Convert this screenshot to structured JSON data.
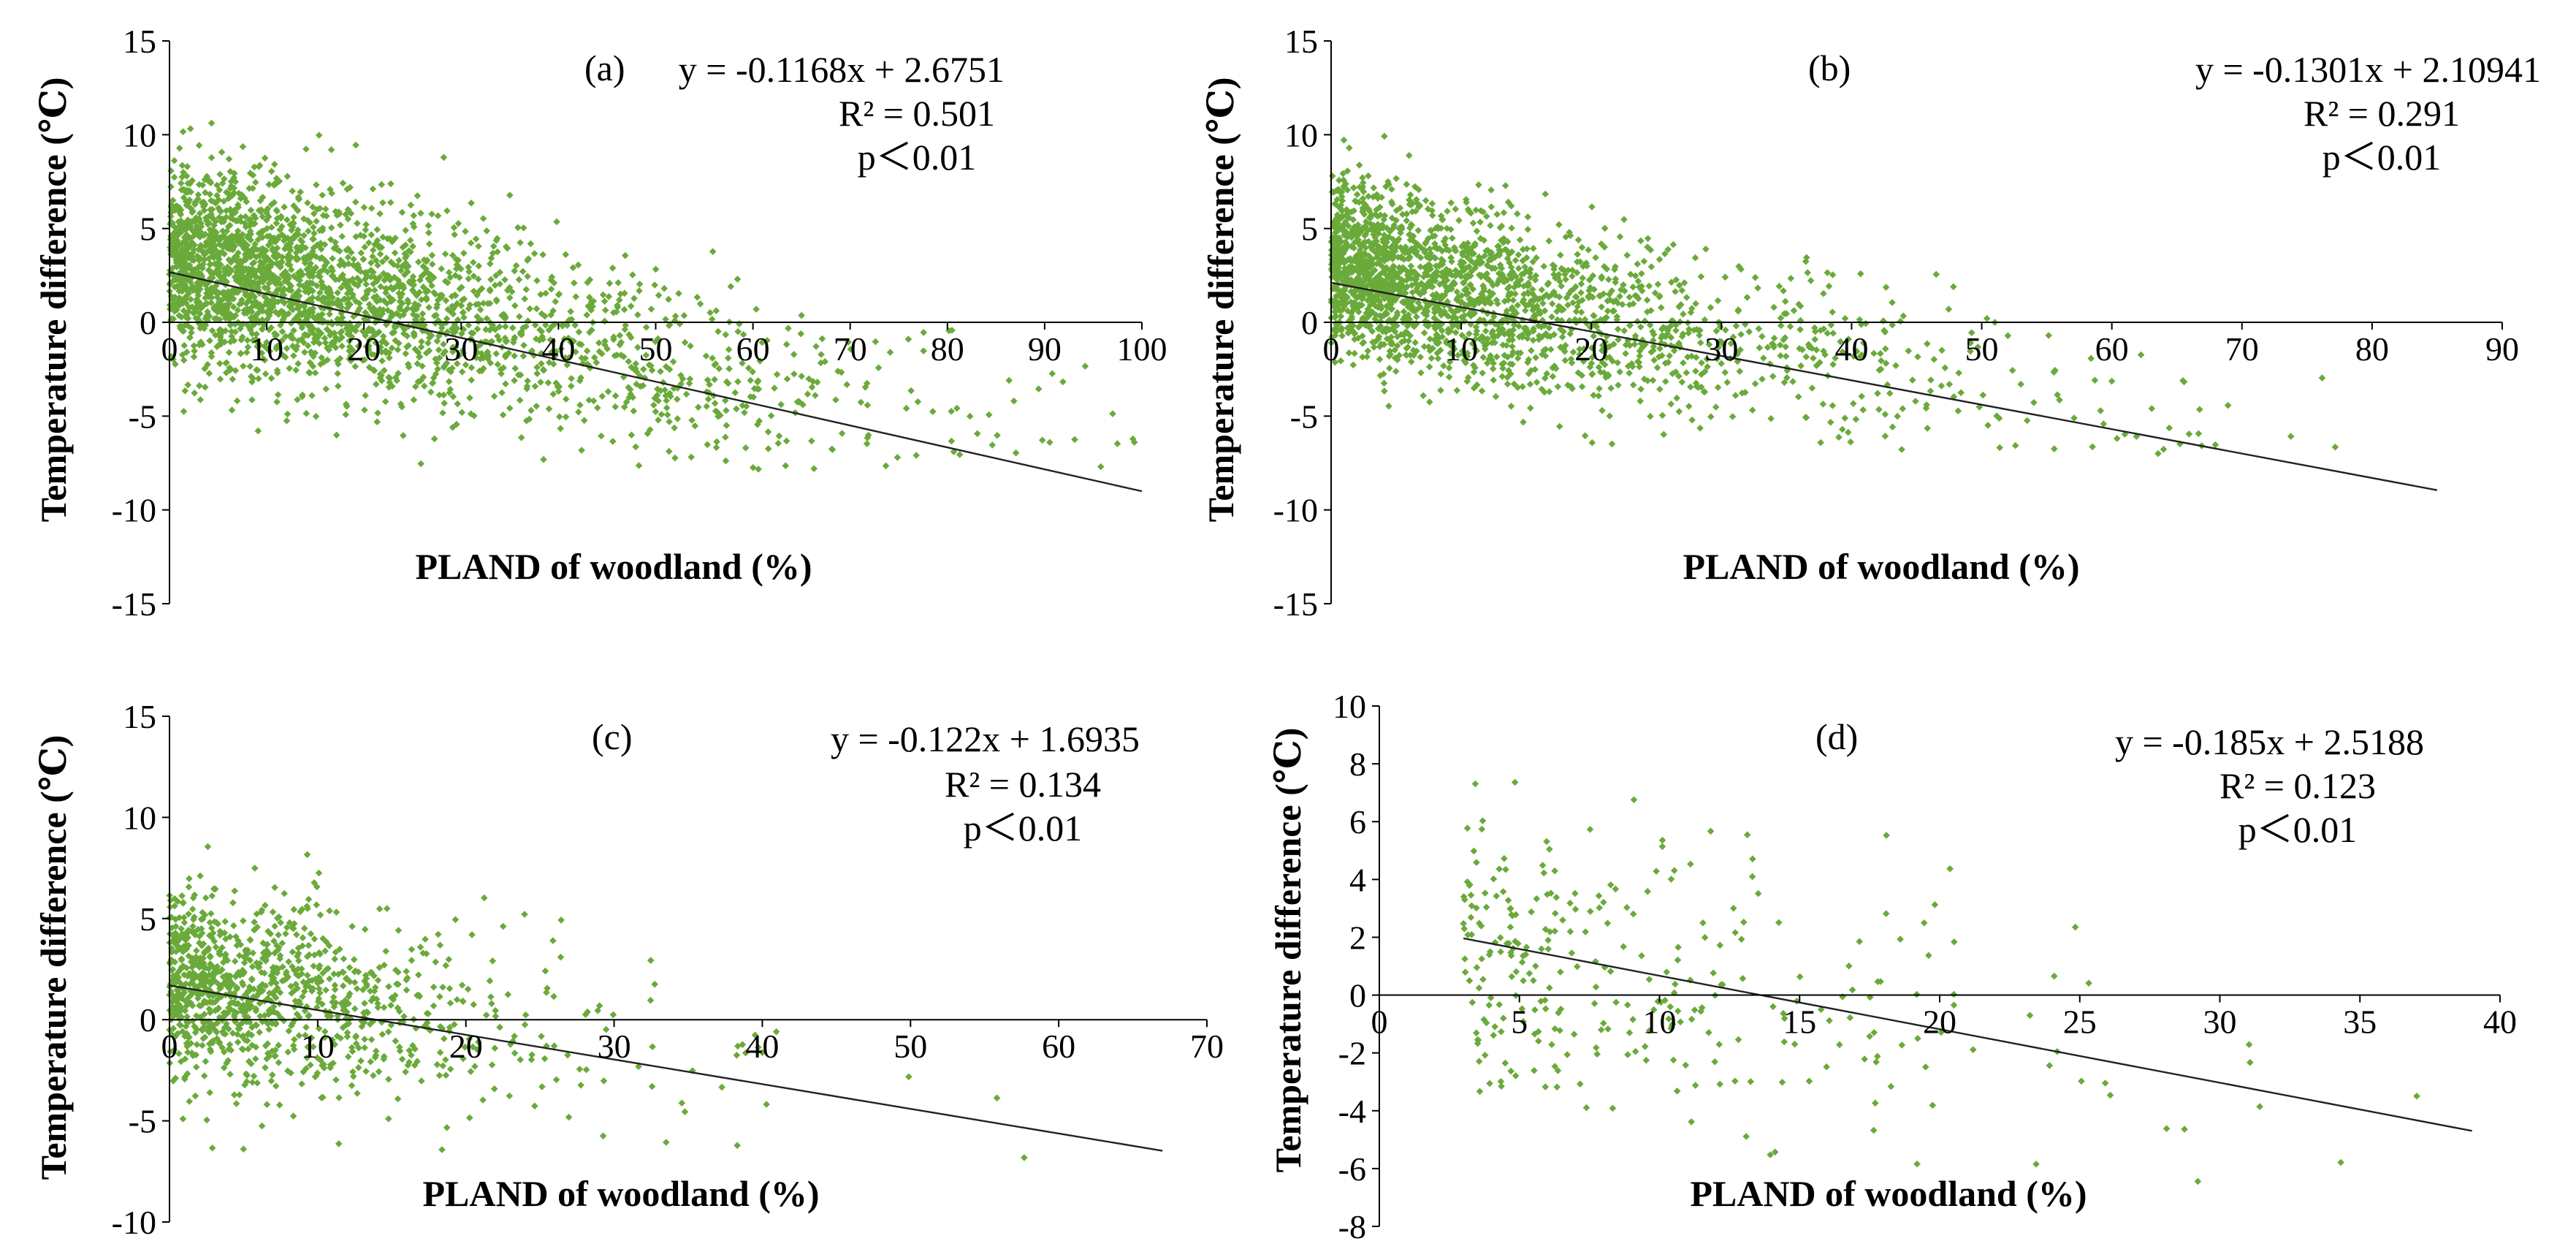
{
  "figure": {
    "colors": {
      "point": "#6aaa3a",
      "trend": "#222222",
      "axis": "#000000",
      "background": "#ffffff"
    }
  },
  "chart_data": [
    {
      "type": "scatter",
      "panel": "(a)",
      "title": "",
      "xlabel": "PLAND of woodland (%)",
      "ylabel": "Temperature difference (℃)",
      "xlim": [
        0,
        100
      ],
      "ylim": [
        -15,
        15
      ],
      "x_ticks": [
        0,
        10,
        20,
        30,
        40,
        50,
        60,
        70,
        80,
        90,
        100
      ],
      "y_ticks": [
        -15,
        -10,
        -5,
        0,
        5,
        10,
        15
      ],
      "x_tick_labels": [
        "0",
        "10",
        "20",
        "30",
        "40",
        "50",
        "60",
        "70",
        "80",
        "90",
        "100"
      ],
      "y_tick_labels": [
        "-15",
        "-10",
        "-5",
        "0",
        "5",
        "10",
        "15"
      ],
      "trend": {
        "slope": -0.1168,
        "intercept": 2.6751,
        "x_range": [
          0,
          100
        ]
      },
      "equation": "y = -0.1168x + 2.6751",
      "r2": "R² = 0.501",
      "p": "p＜0.01",
      "cloud": {
        "n": 2600,
        "x_max": 100,
        "density_decay": 22,
        "sd": 2.6,
        "fit_intercept": 3.6,
        "fit_slope": -0.116,
        "y_range": [
          -8,
          12
        ]
      }
    },
    {
      "type": "scatter",
      "panel": "(b)",
      "title": "",
      "xlabel": "PLAND of woodland (%)",
      "ylabel": "Temperature difference (℃)",
      "xlim": [
        0,
        90
      ],
      "ylim": [
        -15,
        15
      ],
      "x_ticks": [
        0,
        10,
        20,
        30,
        40,
        50,
        60,
        70,
        80,
        90
      ],
      "y_ticks": [
        -15,
        -10,
        -5,
        0,
        5,
        10,
        15
      ],
      "x_tick_labels": [
        "0",
        "10",
        "20",
        "30",
        "40",
        "50",
        "60",
        "70",
        "80",
        "90"
      ],
      "y_tick_labels": [
        "-15",
        "-10",
        "-5",
        "0",
        "5",
        "10",
        "15"
      ],
      "trend": {
        "slope": -0.1301,
        "intercept": 2.10941,
        "x_range": [
          0,
          85
        ]
      },
      "equation": "y = -0.1301x + 2.10941",
      "r2": "R² = 0.291",
      "p": "p＜0.01",
      "cloud": {
        "n": 2200,
        "x_max": 86,
        "density_decay": 13,
        "sd": 2.3,
        "fit_intercept": 3.0,
        "fit_slope": -0.13,
        "y_range": [
          -7,
          11
        ]
      }
    },
    {
      "type": "scatter",
      "panel": "(c)",
      "title": "",
      "xlabel": "PLAND of woodland (%)",
      "ylabel": "Temperature difference (℃)",
      "xlim": [
        0,
        70
      ],
      "ylim": [
        -10,
        15
      ],
      "x_ticks": [
        0,
        10,
        20,
        30,
        40,
        50,
        60,
        70
      ],
      "y_ticks": [
        -10,
        -5,
        0,
        5,
        10,
        15
      ],
      "x_tick_labels": [
        "0",
        "10",
        "20",
        "30",
        "40",
        "50",
        "60",
        "70"
      ],
      "y_tick_labels": [
        "-10",
        "-5",
        "0",
        "5",
        "10",
        "15"
      ],
      "trend": {
        "slope": -0.122,
        "intercept": 1.6935,
        "x_range": [
          0,
          67
        ]
      },
      "equation": "y = -0.122x + 1.6935",
      "r2": "R² = 0.134",
      "p": "p＜0.01",
      "cloud": {
        "n": 1100,
        "x_max": 68,
        "density_decay": 8,
        "sd": 2.3,
        "fit_intercept": 2.0,
        "fit_slope": -0.122,
        "y_range": [
          -7,
          14
        ]
      }
    },
    {
      "type": "scatter",
      "panel": "(d)",
      "title": "",
      "xlabel": "PLAND of woodland (%)",
      "ylabel": "Temperature difference (℃)",
      "xlim": [
        0,
        40
      ],
      "ylim": [
        -8,
        10
      ],
      "x_ticks": [
        0,
        5,
        10,
        15,
        20,
        25,
        30,
        35,
        40
      ],
      "y_ticks": [
        -8,
        -6,
        -4,
        -2,
        0,
        2,
        4,
        6,
        8,
        10
      ],
      "x_tick_labels": [
        "0",
        "5",
        "10",
        "15",
        "20",
        "25",
        "30",
        "35",
        "40"
      ],
      "y_tick_labels": [
        "-8",
        "-6",
        "-4",
        "-2",
        "0",
        "2",
        "4",
        "6",
        "8",
        "10"
      ],
      "trend": {
        "slope": -0.185,
        "intercept": 2.5188,
        "x_range": [
          3,
          39
        ]
      },
      "equation": "y = -0.185x + 2.5188",
      "r2": "R² = 0.123",
      "p": "p＜0.01",
      "cloud": {
        "n": 300,
        "x_min": 3,
        "x_max": 39,
        "density_decay": 7,
        "sd": 2.6,
        "fit_intercept": 2.5,
        "fit_slope": -0.185,
        "y_range": [
          -6.5,
          8
        ]
      }
    }
  ]
}
